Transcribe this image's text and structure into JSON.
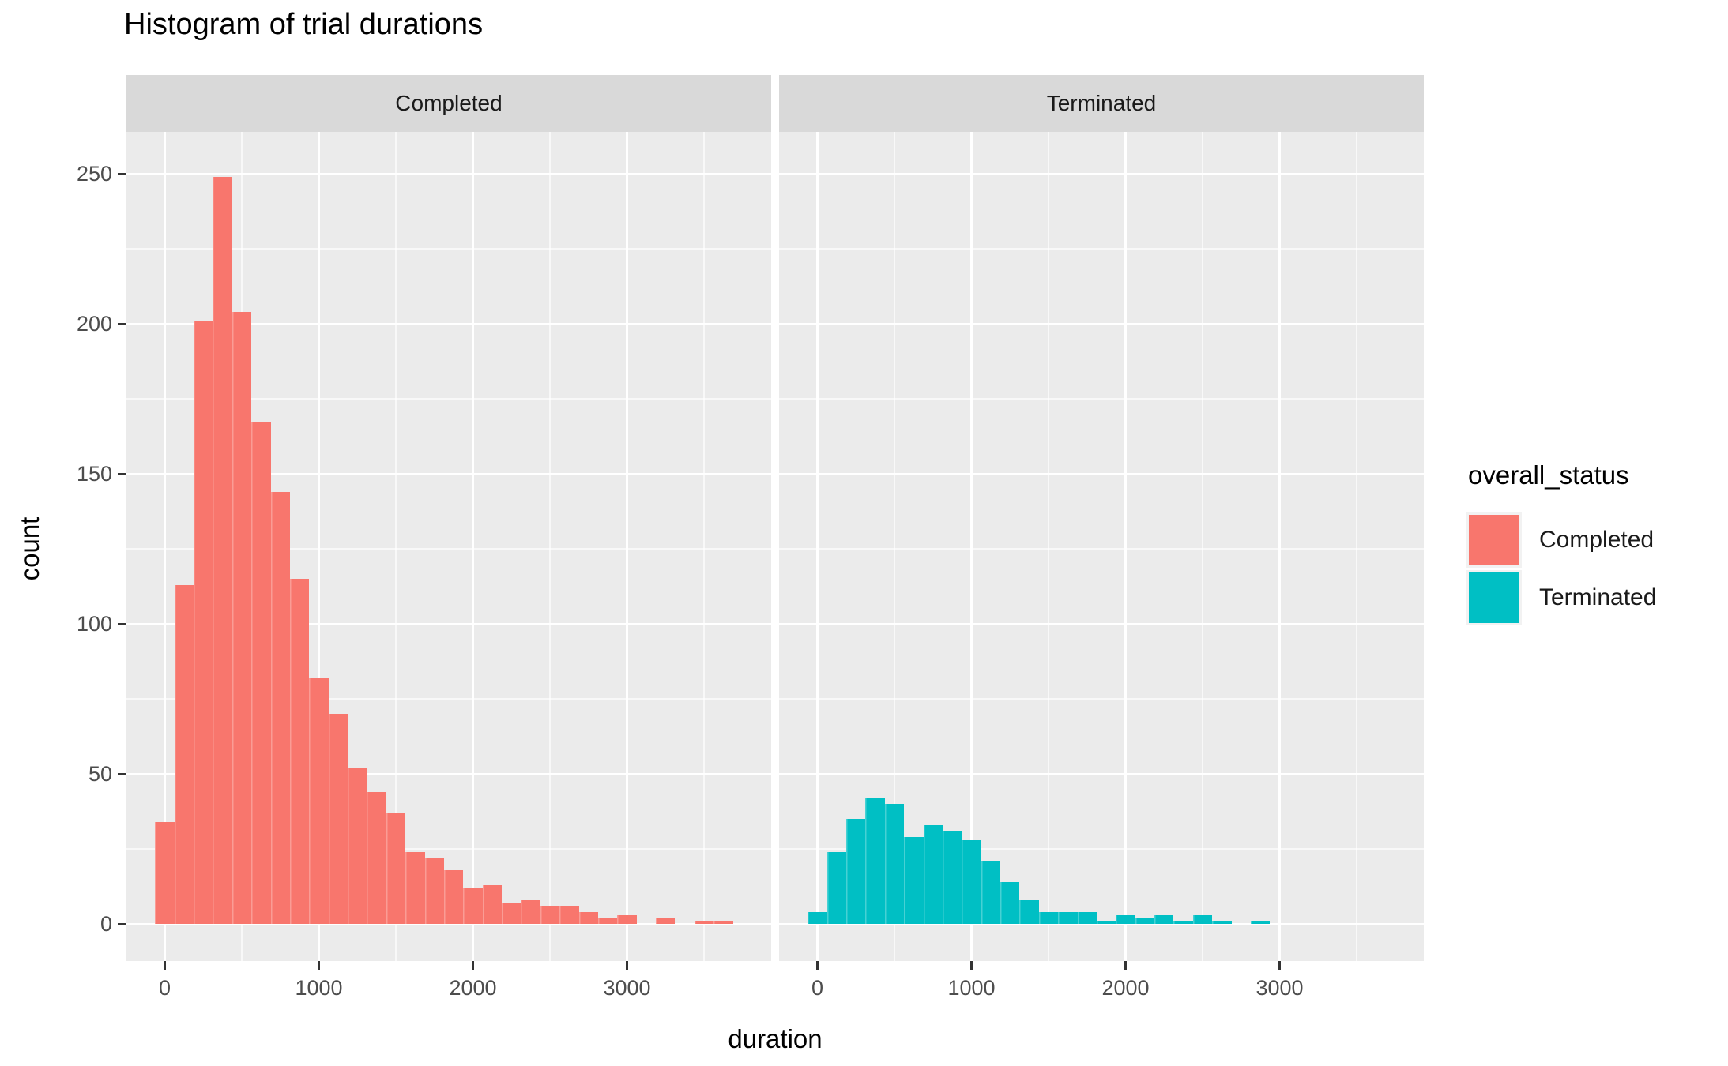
{
  "title": "Histogram of trial durations",
  "axes": {
    "x_label": "duration",
    "y_label": "count",
    "y_ticks": [
      0,
      50,
      100,
      150,
      200,
      250
    ],
    "y_minor_ticks": [
      25,
      75,
      125,
      175,
      225
    ],
    "x_ticks": [
      0,
      1000,
      2000,
      3000
    ],
    "x_minor_ticks": [
      500,
      1500,
      2500,
      3500
    ]
  },
  "legend": {
    "title": "overall_status",
    "items": [
      {
        "label": "Completed",
        "color": "#F8766D"
      },
      {
        "label": "Terminated",
        "color": "#00BFC4"
      }
    ]
  },
  "theme": {
    "panel_background": "#EBEBEB",
    "strip_background": "#D9D9D9",
    "gridline_color": "#FFFFFF",
    "tick_label_color": "#4D4D4D",
    "tick_mark_color": "#333333",
    "text_color": "#1A1A1A"
  },
  "chart_data": {
    "type": "bar",
    "subtype": "faceted_histogram",
    "title": "Histogram of trial durations",
    "xlabel": "duration",
    "ylabel": "count",
    "bin_width": 125,
    "xlim": [
      -250,
      3935
    ],
    "ylim": [
      0,
      262
    ],
    "grid": true,
    "legend_position": "right",
    "y_axis_ticks": [
      0,
      50,
      100,
      150,
      200,
      250
    ],
    "x_axis_ticks": [
      0,
      1000,
      2000,
      3000
    ],
    "facets": [
      {
        "label": "Completed",
        "color": "#F8766D",
        "bin_centers": [
          0,
          125,
          250,
          375,
          500,
          625,
          750,
          875,
          1000,
          1125,
          1250,
          1375,
          1500,
          1625,
          1750,
          1875,
          2000,
          2125,
          2250,
          2375,
          2500,
          2625,
          2750,
          2875,
          3000,
          3125,
          3250,
          3375,
          3500,
          3625
        ],
        "counts": [
          34,
          113,
          201,
          249,
          204,
          167,
          144,
          115,
          82,
          70,
          52,
          44,
          37,
          24,
          22,
          18,
          12,
          13,
          7,
          8,
          6,
          6,
          4,
          2,
          3,
          0,
          2,
          0,
          1,
          1
        ]
      },
      {
        "label": "Terminated",
        "color": "#00BFC4",
        "bin_centers": [
          0,
          125,
          250,
          375,
          500,
          625,
          750,
          875,
          1000,
          1125,
          1250,
          1375,
          1500,
          1625,
          1750,
          1875,
          2000,
          2125,
          2250,
          2375,
          2500,
          2625,
          2750,
          2875
        ],
        "counts": [
          4,
          24,
          35,
          42,
          40,
          29,
          33,
          31,
          28,
          21,
          14,
          8,
          4,
          4,
          4,
          1,
          3,
          2,
          3,
          1,
          3,
          1,
          0,
          1
        ]
      }
    ]
  }
}
